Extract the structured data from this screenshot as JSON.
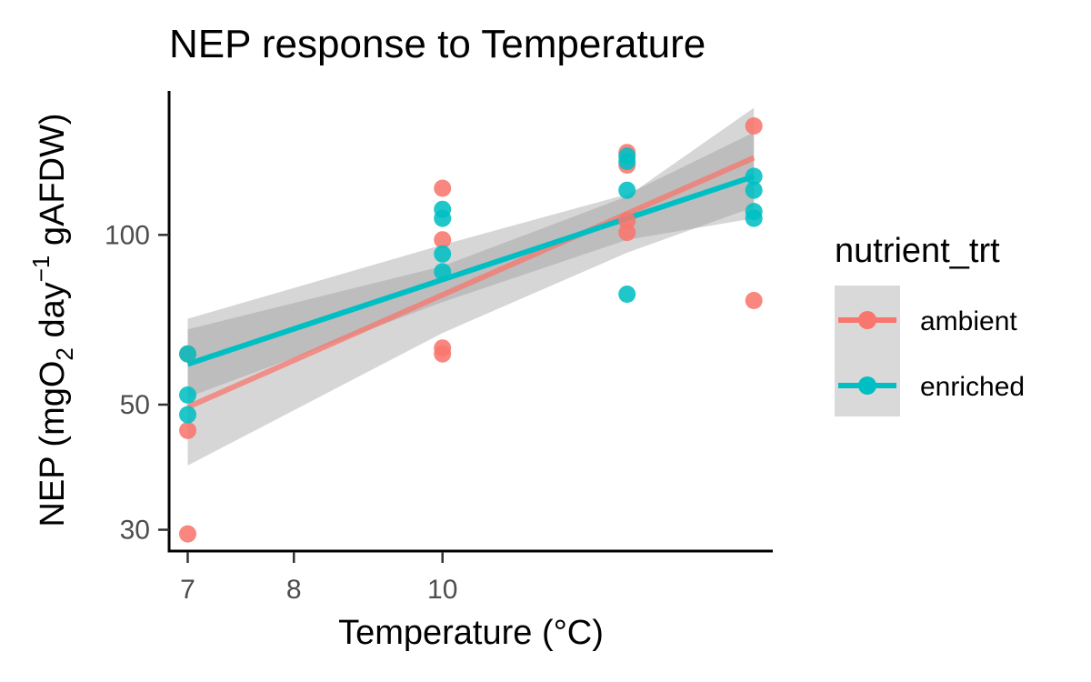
{
  "chart_data": {
    "type": "scatter",
    "title": "NEP response to Temperature",
    "xlabel": "Temperature (°C)",
    "ylabel": {
      "prefix": "NEP (mgO",
      "sub": "2",
      "mid": " day",
      "sup": "−1",
      "suffix": " gAFDW)"
    },
    "x_scale": "reciprocal",
    "y_scale": "log",
    "xlim": [
      6.85,
      22.5
    ],
    "ylim": [
      27.5,
      180
    ],
    "x_ticks": [
      7,
      8,
      10
    ],
    "x_tick_labels": [
      "7",
      "8",
      "10"
    ],
    "y_ticks": [
      30,
      50,
      100
    ],
    "y_tick_labels": [
      "30",
      "50",
      "100"
    ],
    "grid": false,
    "legend": {
      "title": "nutrient_trt",
      "position": "right",
      "entries": [
        "ambient",
        "enriched"
      ]
    },
    "series": [
      {
        "name": "ambient",
        "color": "#f8766d",
        "points": [
          {
            "x": 7,
            "y": 61.5
          },
          {
            "x": 7,
            "y": 45
          },
          {
            "x": 7,
            "y": 29.5
          },
          {
            "x": 10,
            "y": 121
          },
          {
            "x": 10,
            "y": 98
          },
          {
            "x": 10,
            "y": 63
          },
          {
            "x": 10,
            "y": 61.5
          },
          {
            "x": 14.5,
            "y": 140
          },
          {
            "x": 14.5,
            "y": 133
          },
          {
            "x": 14.5,
            "y": 106
          },
          {
            "x": 14.5,
            "y": 101
          },
          {
            "x": 21,
            "y": 156
          },
          {
            "x": 21,
            "y": 76.5
          }
        ],
        "fit": [
          {
            "x": 7,
            "y": 49.5
          },
          {
            "x": 21,
            "y": 137
          }
        ],
        "ci_lower": [
          {
            "x": 7,
            "y": 39
          },
          {
            "x": 10,
            "y": 67
          },
          {
            "x": 14.5,
            "y": 93
          },
          {
            "x": 21,
            "y": 112
          }
        ],
        "ci_upper": [
          {
            "x": 7,
            "y": 68
          },
          {
            "x": 10,
            "y": 88
          },
          {
            "x": 14.5,
            "y": 117
          },
          {
            "x": 21,
            "y": 168
          }
        ]
      },
      {
        "name": "enriched",
        "color": "#00bfc4",
        "points": [
          {
            "x": 7,
            "y": 61.5
          },
          {
            "x": 7,
            "y": 52
          },
          {
            "x": 7,
            "y": 48
          },
          {
            "x": 10,
            "y": 111
          },
          {
            "x": 10,
            "y": 107
          },
          {
            "x": 10,
            "y": 92.5
          },
          {
            "x": 10,
            "y": 86
          },
          {
            "x": 14.5,
            "y": 138
          },
          {
            "x": 14.5,
            "y": 135
          },
          {
            "x": 14.5,
            "y": 120
          },
          {
            "x": 14.5,
            "y": 78.5
          },
          {
            "x": 21,
            "y": 127
          },
          {
            "x": 21,
            "y": 120
          },
          {
            "x": 21,
            "y": 110
          },
          {
            "x": 21,
            "y": 107
          }
        ],
        "fit": [
          {
            "x": 7,
            "y": 59
          },
          {
            "x": 21,
            "y": 127
          }
        ],
        "ci_lower": [
          {
            "x": 7,
            "y": 51.5
          },
          {
            "x": 10,
            "y": 76
          },
          {
            "x": 14.5,
            "y": 98
          },
          {
            "x": 21,
            "y": 107
          }
        ],
        "ci_upper": [
          {
            "x": 7,
            "y": 71
          },
          {
            "x": 10,
            "y": 96
          },
          {
            "x": 14.5,
            "y": 118
          },
          {
            "x": 21,
            "y": 152
          }
        ]
      }
    ]
  }
}
